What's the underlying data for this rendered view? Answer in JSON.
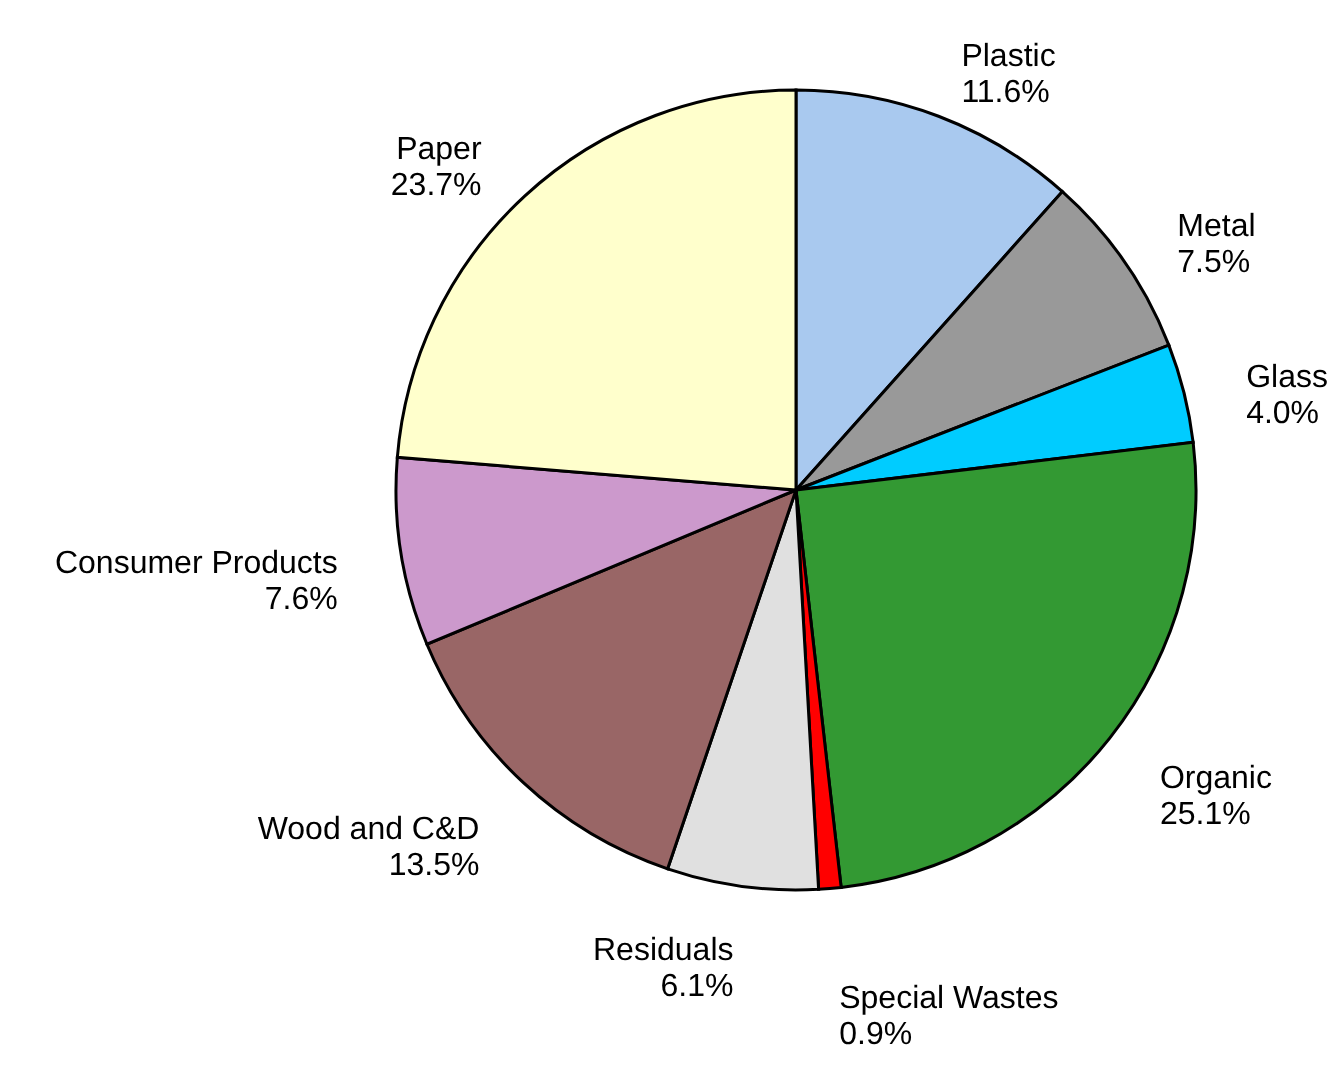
{
  "chart_data": {
    "type": "pie",
    "categories": [
      "Plastic",
      "Metal",
      "Glass",
      "Organic",
      "Special Wastes",
      "Residuals",
      "Wood and C&D",
      "Consumer Products",
      "Paper"
    ],
    "values": [
      11.6,
      7.5,
      4.0,
      25.1,
      0.9,
      6.1,
      13.5,
      7.6,
      23.7
    ],
    "value_labels": [
      "11.6%",
      "7.5%",
      "4.0%",
      "25.1%",
      "0.9%",
      "6.1%",
      "13.5%",
      "7.6%",
      "23.7%"
    ],
    "colors": [
      "#a9c9ef",
      "#999999",
      "#00ccff",
      "#339933",
      "#ff0000",
      "#e0e0e0",
      "#996666",
      "#cc99cc",
      "#ffffcc"
    ]
  }
}
